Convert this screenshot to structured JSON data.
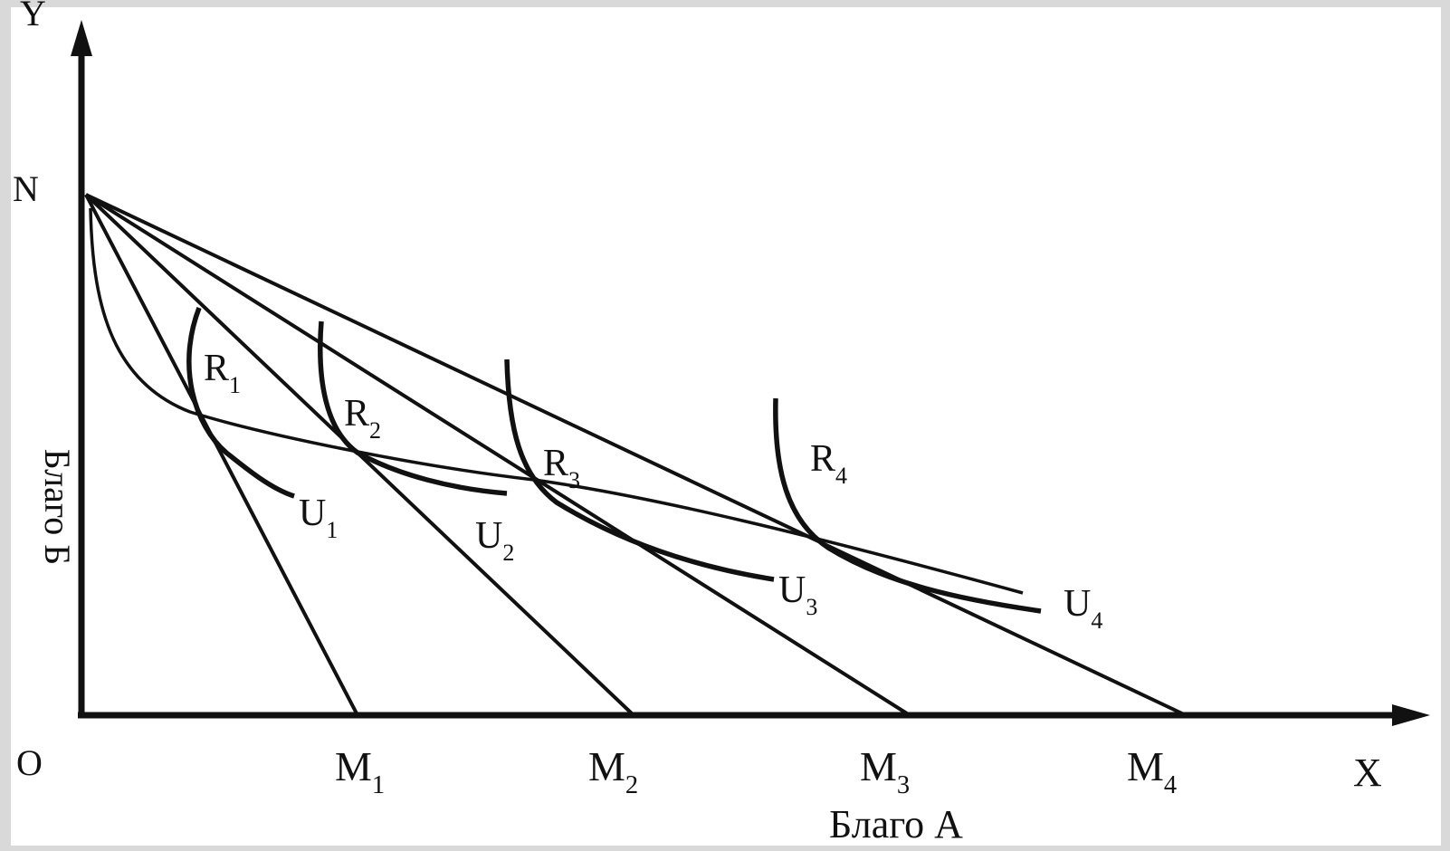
{
  "axes": {
    "y_label": "Y",
    "x_label": "X",
    "origin_label": "O",
    "n_label": "N",
    "y_title": "Благо Б",
    "x_title": "Благо А"
  },
  "budget_lines": [
    "M1",
    "M2",
    "M3",
    "M4"
  ],
  "indifference_curves": [
    "U1",
    "U2",
    "U3",
    "U4"
  ],
  "points": [
    "R1",
    "R2",
    "R3",
    "R4"
  ],
  "colors": {
    "ink": "#111111",
    "frame": "#d9d9d9"
  }
}
